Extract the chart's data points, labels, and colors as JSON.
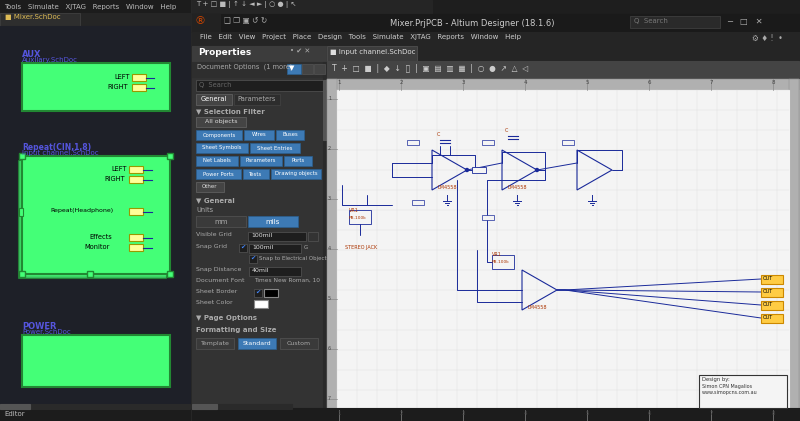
{
  "bg_dark": "#2a2a2a",
  "bg_left_panel": "#1e1e24",
  "bg_left_grid": "#252530",
  "green_block": "#44ff77",
  "green_block_border": "#228833",
  "yellow_port": "#ffff99",
  "blue_wire": "#000066",
  "text_blue": "#5555dd",
  "btn_blue": "#3d7ab5",
  "btn_blue_ec": "#2a6090",
  "properties_bg": "#333333",
  "properties_header": "#3a3a3a",
  "dark_input": "#252525",
  "menu_bg": "#2b2b2b",
  "toolbar_bg": "#333333",
  "tab_active": "#3c3c3c",
  "schematic_bg": "#e8e8e8",
  "schematic_grid": "#cccccc",
  "schematic_inner": "#f2f2f2",
  "ruler_bg": "#aaaaaa",
  "circuit_blue": "#1a2a9a",
  "circuit_red": "#aa3300",
  "circuit_orange": "#cc7700",
  "title_bar": "#1a1a1a",
  "window_bg": "#1e1e1e"
}
